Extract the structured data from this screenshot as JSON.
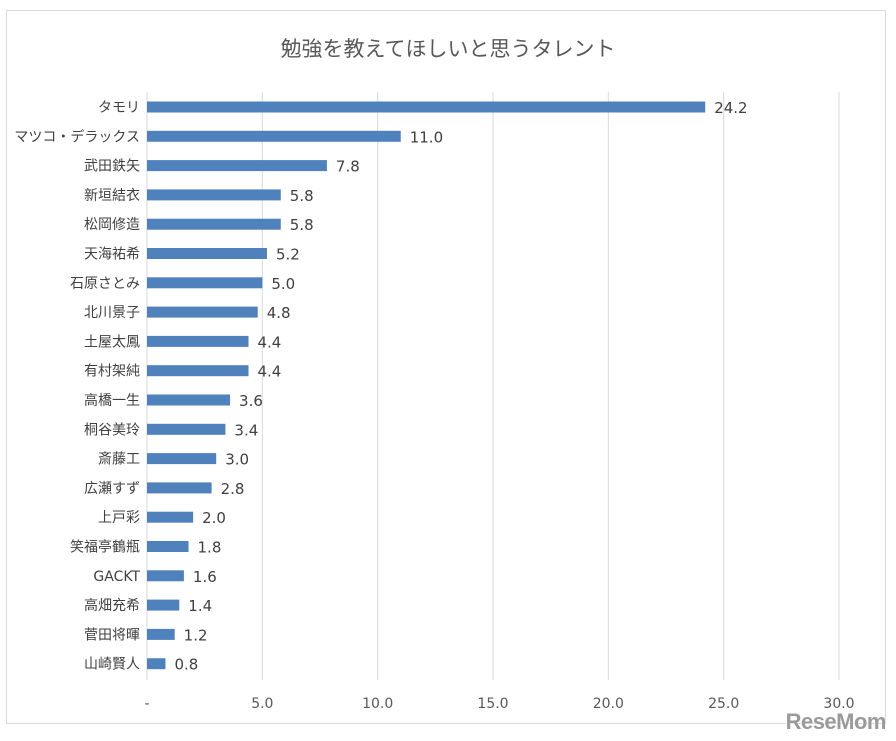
{
  "chart_data": {
    "type": "bar",
    "orientation": "horizontal",
    "title": "勉強を教えてほしいと思うタレント",
    "categories": [
      "タモリ",
      "マツコ・デラックス",
      "武田鉄矢",
      "新垣結衣",
      "松岡修造",
      "天海祐希",
      "石原さとみ",
      "北川景子",
      "土屋太鳳",
      "有村架純",
      "高橋一生",
      "桐谷美玲",
      "斎藤工",
      "広瀬すず",
      "上戸彩",
      "笑福亭鶴瓶",
      "GACKT",
      "高畑充希",
      "菅田将暉",
      "山崎賢人"
    ],
    "values": [
      24.2,
      11.0,
      7.8,
      5.8,
      5.8,
      5.2,
      5.0,
      4.8,
      4.4,
      4.4,
      3.6,
      3.4,
      3.0,
      2.8,
      2.0,
      1.8,
      1.6,
      1.4,
      1.2,
      0.8
    ],
    "value_labels": [
      "24.2",
      "11.0",
      "7.8",
      "5.8",
      "5.8",
      "5.2",
      "5.0",
      "4.8",
      "4.4",
      "4.4",
      "3.6",
      "3.4",
      "3.0",
      "2.8",
      "2.0",
      "1.8",
      "1.6",
      "1.4",
      "1.2",
      "0.8"
    ],
    "xlim": [
      0,
      30
    ],
    "xticks": [
      0,
      5,
      10,
      15,
      20,
      25,
      30
    ],
    "xtick_labels": [
      "-",
      "5.0",
      "10.0",
      "15.0",
      "20.0",
      "25.0",
      "30.0"
    ],
    "grid": true,
    "bar_color": "#4f81bd"
  },
  "watermark": "ReseMom"
}
